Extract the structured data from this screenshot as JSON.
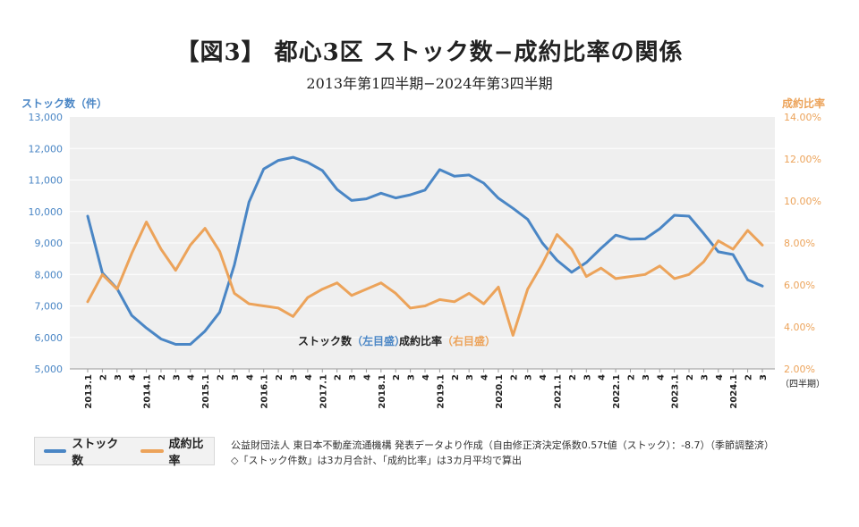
{
  "header": {
    "title": "【図3】 都心3区 ストック数−成約比率の関係",
    "subtitle": "2013年第1四半期−2024年第3四半期"
  },
  "colors": {
    "stock": "#4a86c5",
    "ratio": "#eca35a",
    "plot_bg": "#efefef",
    "grid": "#ffffff"
  },
  "chart_data": {
    "type": "line",
    "left_axis_label": "ストック数（件）",
    "right_axis_label": "成約比率",
    "left_ylim": [
      5000,
      13000
    ],
    "left_ticks": [
      "5,000",
      "6,000",
      "7,000",
      "8,000",
      "9,000",
      "10,000",
      "11,000",
      "12,000",
      "13,000"
    ],
    "right_ylim": [
      2,
      14
    ],
    "right_ticks": [
      "2.00%",
      "4.00%",
      "6.00%",
      "8.00%",
      "10.00%",
      "12.00%",
      "14.00%"
    ],
    "x_tick_labels": [
      "2013.1",
      "2",
      "3",
      "4",
      "2014.1",
      "2",
      "3",
      "4",
      "2015.1",
      "2",
      "3",
      "4",
      "2016.1",
      "2",
      "3",
      "4",
      "2017.1",
      "2",
      "3",
      "4",
      "2018.1",
      "2",
      "3",
      "4",
      "2019.1",
      "2",
      "3",
      "4",
      "2020.1",
      "2",
      "3",
      "4",
      "2021.1",
      "2",
      "3",
      "4",
      "2022.1",
      "2",
      "3",
      "4",
      "2023.1",
      "2",
      "3",
      "4",
      "2024.1",
      "2",
      "3"
    ],
    "x_unit_label": "（四半期）",
    "grid": true,
    "series": [
      {
        "name": "ストック数",
        "axis": "left",
        "values": [
          9850,
          8050,
          7550,
          6700,
          6300,
          5950,
          5780,
          5780,
          6200,
          6800,
          8300,
          10300,
          11350,
          11620,
          11720,
          11560,
          11300,
          10700,
          10350,
          10400,
          10580,
          10430,
          10530,
          10680,
          11330,
          11120,
          11160,
          10900,
          10420,
          10100,
          9750,
          9000,
          8450,
          8070,
          8380,
          8830,
          9250,
          9120,
          9130,
          9450,
          9880,
          9850,
          9300,
          8720,
          8630,
          7830,
          7630
        ]
      },
      {
        "name": "成約比率",
        "axis": "right",
        "values": [
          5.2,
          6.5,
          5.8,
          7.5,
          9.0,
          7.7,
          6.7,
          7.9,
          8.7,
          7.6,
          5.6,
          5.1,
          5.0,
          4.9,
          4.5,
          5.4,
          5.8,
          6.1,
          5.5,
          5.8,
          6.1,
          5.6,
          4.9,
          5.0,
          5.3,
          5.2,
          5.6,
          5.1,
          5.9,
          3.6,
          5.8,
          7.0,
          8.4,
          7.7,
          6.4,
          6.8,
          6.3,
          6.4,
          6.5,
          6.9,
          6.3,
          6.5,
          7.1,
          8.1,
          7.7,
          8.6,
          7.9
        ]
      }
    ],
    "annotations": {
      "stock_text": "ストック数",
      "stock_axis_note": "（左目盛）",
      "ratio_text": "成約比率",
      "ratio_axis_note": "（右目盛）"
    }
  },
  "legend": {
    "stock_label": "ストック数",
    "ratio_label": "成約比率"
  },
  "notes": {
    "line1": "公益財団法人 東日本不動産流通機構 発表データより作成（自由修正済決定係数0.57t値（ストック）：-8.7）（季節調整済）",
    "line2": "◇「ストック件数」は3カ月合計、「成約比率」は3カ月平均で算出"
  }
}
